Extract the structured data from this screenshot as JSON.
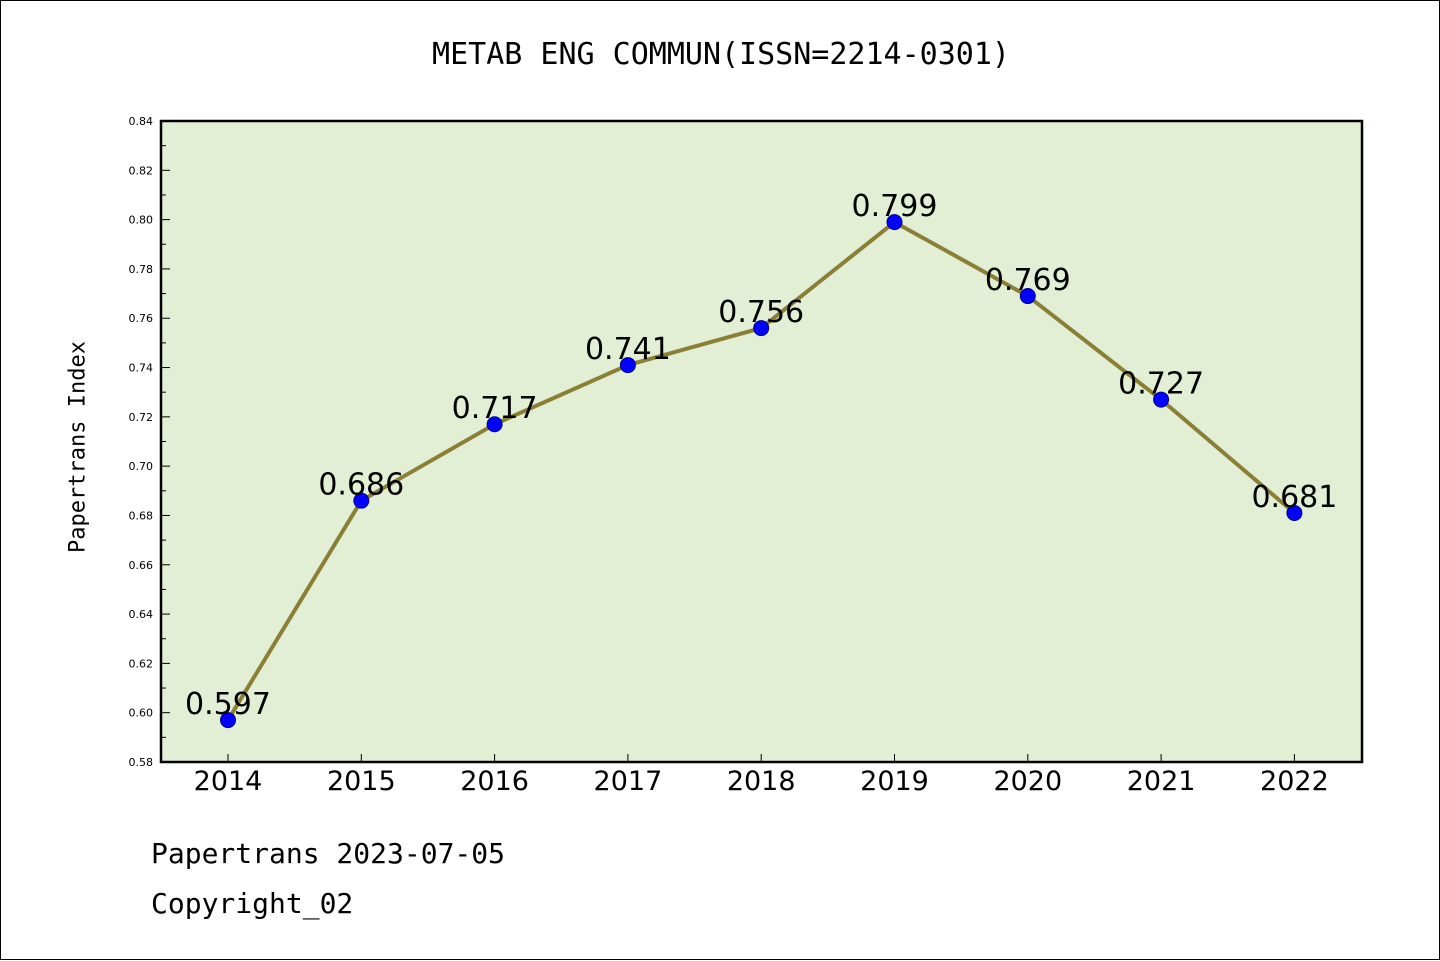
{
  "chart_data": {
    "type": "line",
    "title": "METAB ENG COMMUN(ISSN=2214-0301)",
    "xlabel": "",
    "ylabel": "Papertrans Index",
    "categories": [
      "2014",
      "2015",
      "2016",
      "2017",
      "2018",
      "2019",
      "2020",
      "2021",
      "2022"
    ],
    "series": [
      {
        "values": [
          0.597,
          0.686,
          0.717,
          0.741,
          0.756,
          0.799,
          0.769,
          0.727,
          0.681
        ]
      }
    ],
    "data_labels": [
      "0.597",
      "0.686",
      "0.717",
      "0.741",
      "0.756",
      "0.799",
      "0.769",
      "0.727",
      "0.681"
    ],
    "ylim": [
      0.58,
      0.84
    ],
    "yticks": [
      "0.58",
      "0.60",
      "0.62",
      "0.64",
      "0.66",
      "0.68",
      "0.70",
      "0.72",
      "0.74",
      "0.76",
      "0.78",
      "0.80",
      "0.82",
      "0.84"
    ],
    "grid": false,
    "colors": {
      "plot_background": "#e2efd5",
      "line": "#8b7f36",
      "marker": "#0000ff"
    }
  },
  "footer": {
    "line1": "Papertrans 2023-07-05",
    "line2": "Copyright_02"
  }
}
